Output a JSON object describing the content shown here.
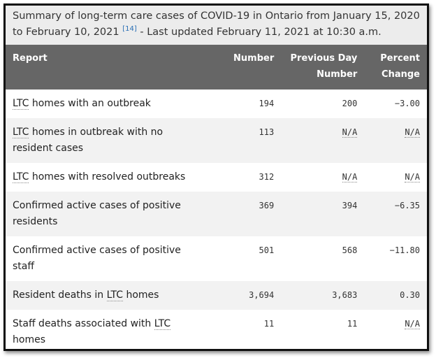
{
  "caption": {
    "text": "Summary of long-term care cases of COVID-19 in Ontario from January 15, 2020 to February 10, 2021",
    "ref": "[14]",
    "updated": " - Last updated February 11, 2021 at 10:30 a.m."
  },
  "headers": {
    "report": "Report",
    "number": "Number",
    "previous": "Previous Day Number",
    "percent": "Percent Change"
  },
  "rows": [
    {
      "pre": "",
      "abbr": "LTC",
      "post": " homes with an outbreak",
      "number": "194",
      "previous": "200",
      "percent": "−3.00"
    },
    {
      "pre": "",
      "abbr": "LTC",
      "post": " homes in outbreak with no resident cases",
      "number": "113",
      "previous": "N/A",
      "percent": "N/A"
    },
    {
      "pre": "",
      "abbr": "LTC",
      "post": " homes with resolved outbreaks",
      "number": "312",
      "previous": "N/A",
      "percent": "N/A"
    },
    {
      "pre": "Confirmed active cases of positive residents",
      "abbr": "",
      "post": "",
      "number": "369",
      "previous": "394",
      "percent": "−6.35"
    },
    {
      "pre": "Confirmed active cases of positive staff",
      "abbr": "",
      "post": "",
      "number": "501",
      "previous": "568",
      "percent": "−11.80"
    },
    {
      "pre": "Resident deaths in ",
      "abbr": "LTC",
      "post": " homes",
      "number": "3,694",
      "previous": "3,683",
      "percent": "0.30"
    },
    {
      "pre": "Staff deaths associated with ",
      "abbr": "LTC",
      "post": " homes",
      "number": "11",
      "previous": "11",
      "percent": "N/A"
    }
  ]
}
